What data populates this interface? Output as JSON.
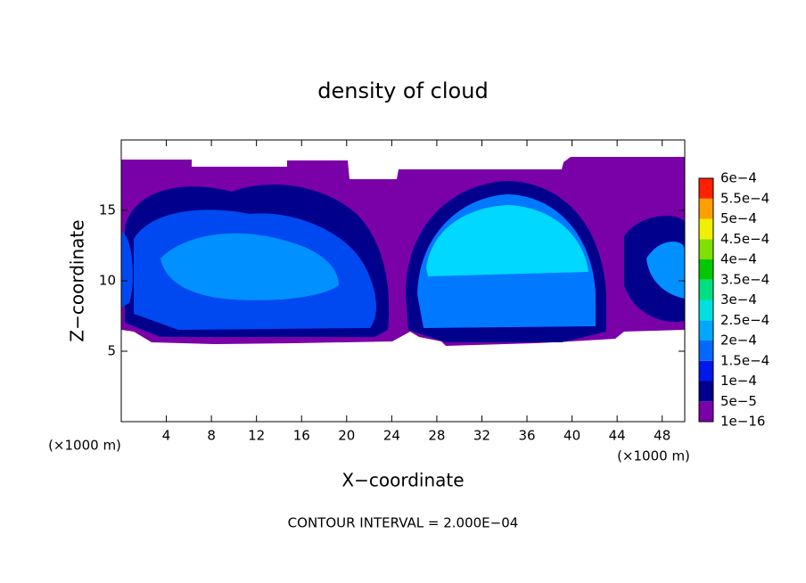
{
  "chart_data": {
    "type": "contour",
    "title": "density of cloud",
    "xlabel": "X−coordinate",
    "ylabel": "Z−coordinate",
    "y_unit": "(×1000 m)",
    "x_unit": "(×1000 m)",
    "xlim": [
      0,
      50
    ],
    "xticks": [
      4,
      8,
      12,
      16,
      20,
      24,
      28,
      32,
      36,
      40,
      44,
      48
    ],
    "ylim": [
      0,
      20
    ],
    "yticks": [
      5,
      10,
      15
    ],
    "colorbar": {
      "levels": [
        {
          "value": 1e-16,
          "label": "1e−16"
        },
        {
          "value": 5e-05,
          "label": "5e−5"
        },
        {
          "value": 0.0001,
          "label": "1e−4"
        },
        {
          "value": 0.00015,
          "label": "1.5e−4"
        },
        {
          "value": 0.0002,
          "label": "2e−4"
        },
        {
          "value": 0.00025,
          "label": "2.5e−4"
        },
        {
          "value": 0.0003,
          "label": "3e−4"
        },
        {
          "value": 0.00035,
          "label": "3.5e−4"
        },
        {
          "value": 0.0004,
          "label": "4e−4"
        },
        {
          "value": 0.00045,
          "label": "4.5e−4"
        },
        {
          "value": 0.0005,
          "label": "5e−4"
        },
        {
          "value": 0.00055,
          "label": "5.5e−4"
        },
        {
          "value": 0.0006,
          "label": "6e−4"
        }
      ],
      "colors": [
        "#7a00a8",
        "#00008c",
        "#0018e8",
        "#0068ff",
        "#00a8ff",
        "#00e0e0",
        "#00e080",
        "#00c800",
        "#80e000",
        "#f0f000",
        "#ffa000",
        "#ff2000"
      ]
    },
    "footer": "CONTOUR INTERVAL = 2.000E−04"
  }
}
